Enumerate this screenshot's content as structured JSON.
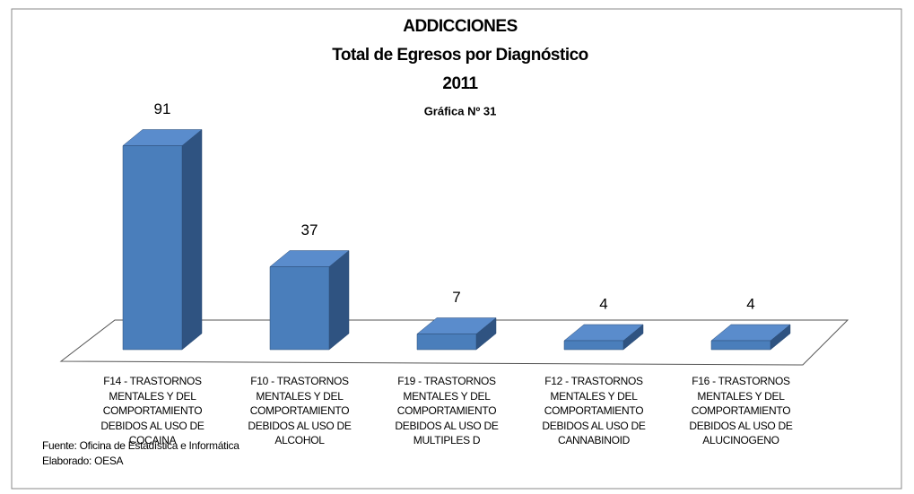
{
  "chart_data": {
    "type": "bar3d",
    "title": [
      "ADDICCIONES",
      "Total de Egresos por Diagnóstico",
      "2011"
    ],
    "subtitle": "Gráfica Nº 31",
    "categories": [
      "F14 - TRASTORNOS MENTALES Y DEL COMPORTAMIENTO DEBIDOS AL USO DE COCAINA",
      "F10 - TRASTORNOS MENTALES Y DEL COMPORTAMIENTO DEBIDOS AL USO DE ALCOHOL",
      "F19 - TRASTORNOS MENTALES Y DEL COMPORTAMIENTO DEBIDOS AL USO DE MULTIPLES D",
      "F12 - TRASTORNOS MENTALES Y DEL COMPORTAMIENTO DEBIDOS AL USO DE CANNABINOID",
      "F16 - TRASTORNOS MENTALES Y DEL COMPORTAMIENTO DEBIDOS AL USO DE ALUCINOGENO"
    ],
    "values": [
      91,
      37,
      7,
      4,
      4
    ],
    "color": "#4a7ebb",
    "ylim": [
      0,
      100
    ],
    "notes": [
      "Fuente: Oficina de Estadística e Informática",
      "Elaborado: OESA"
    ]
  }
}
